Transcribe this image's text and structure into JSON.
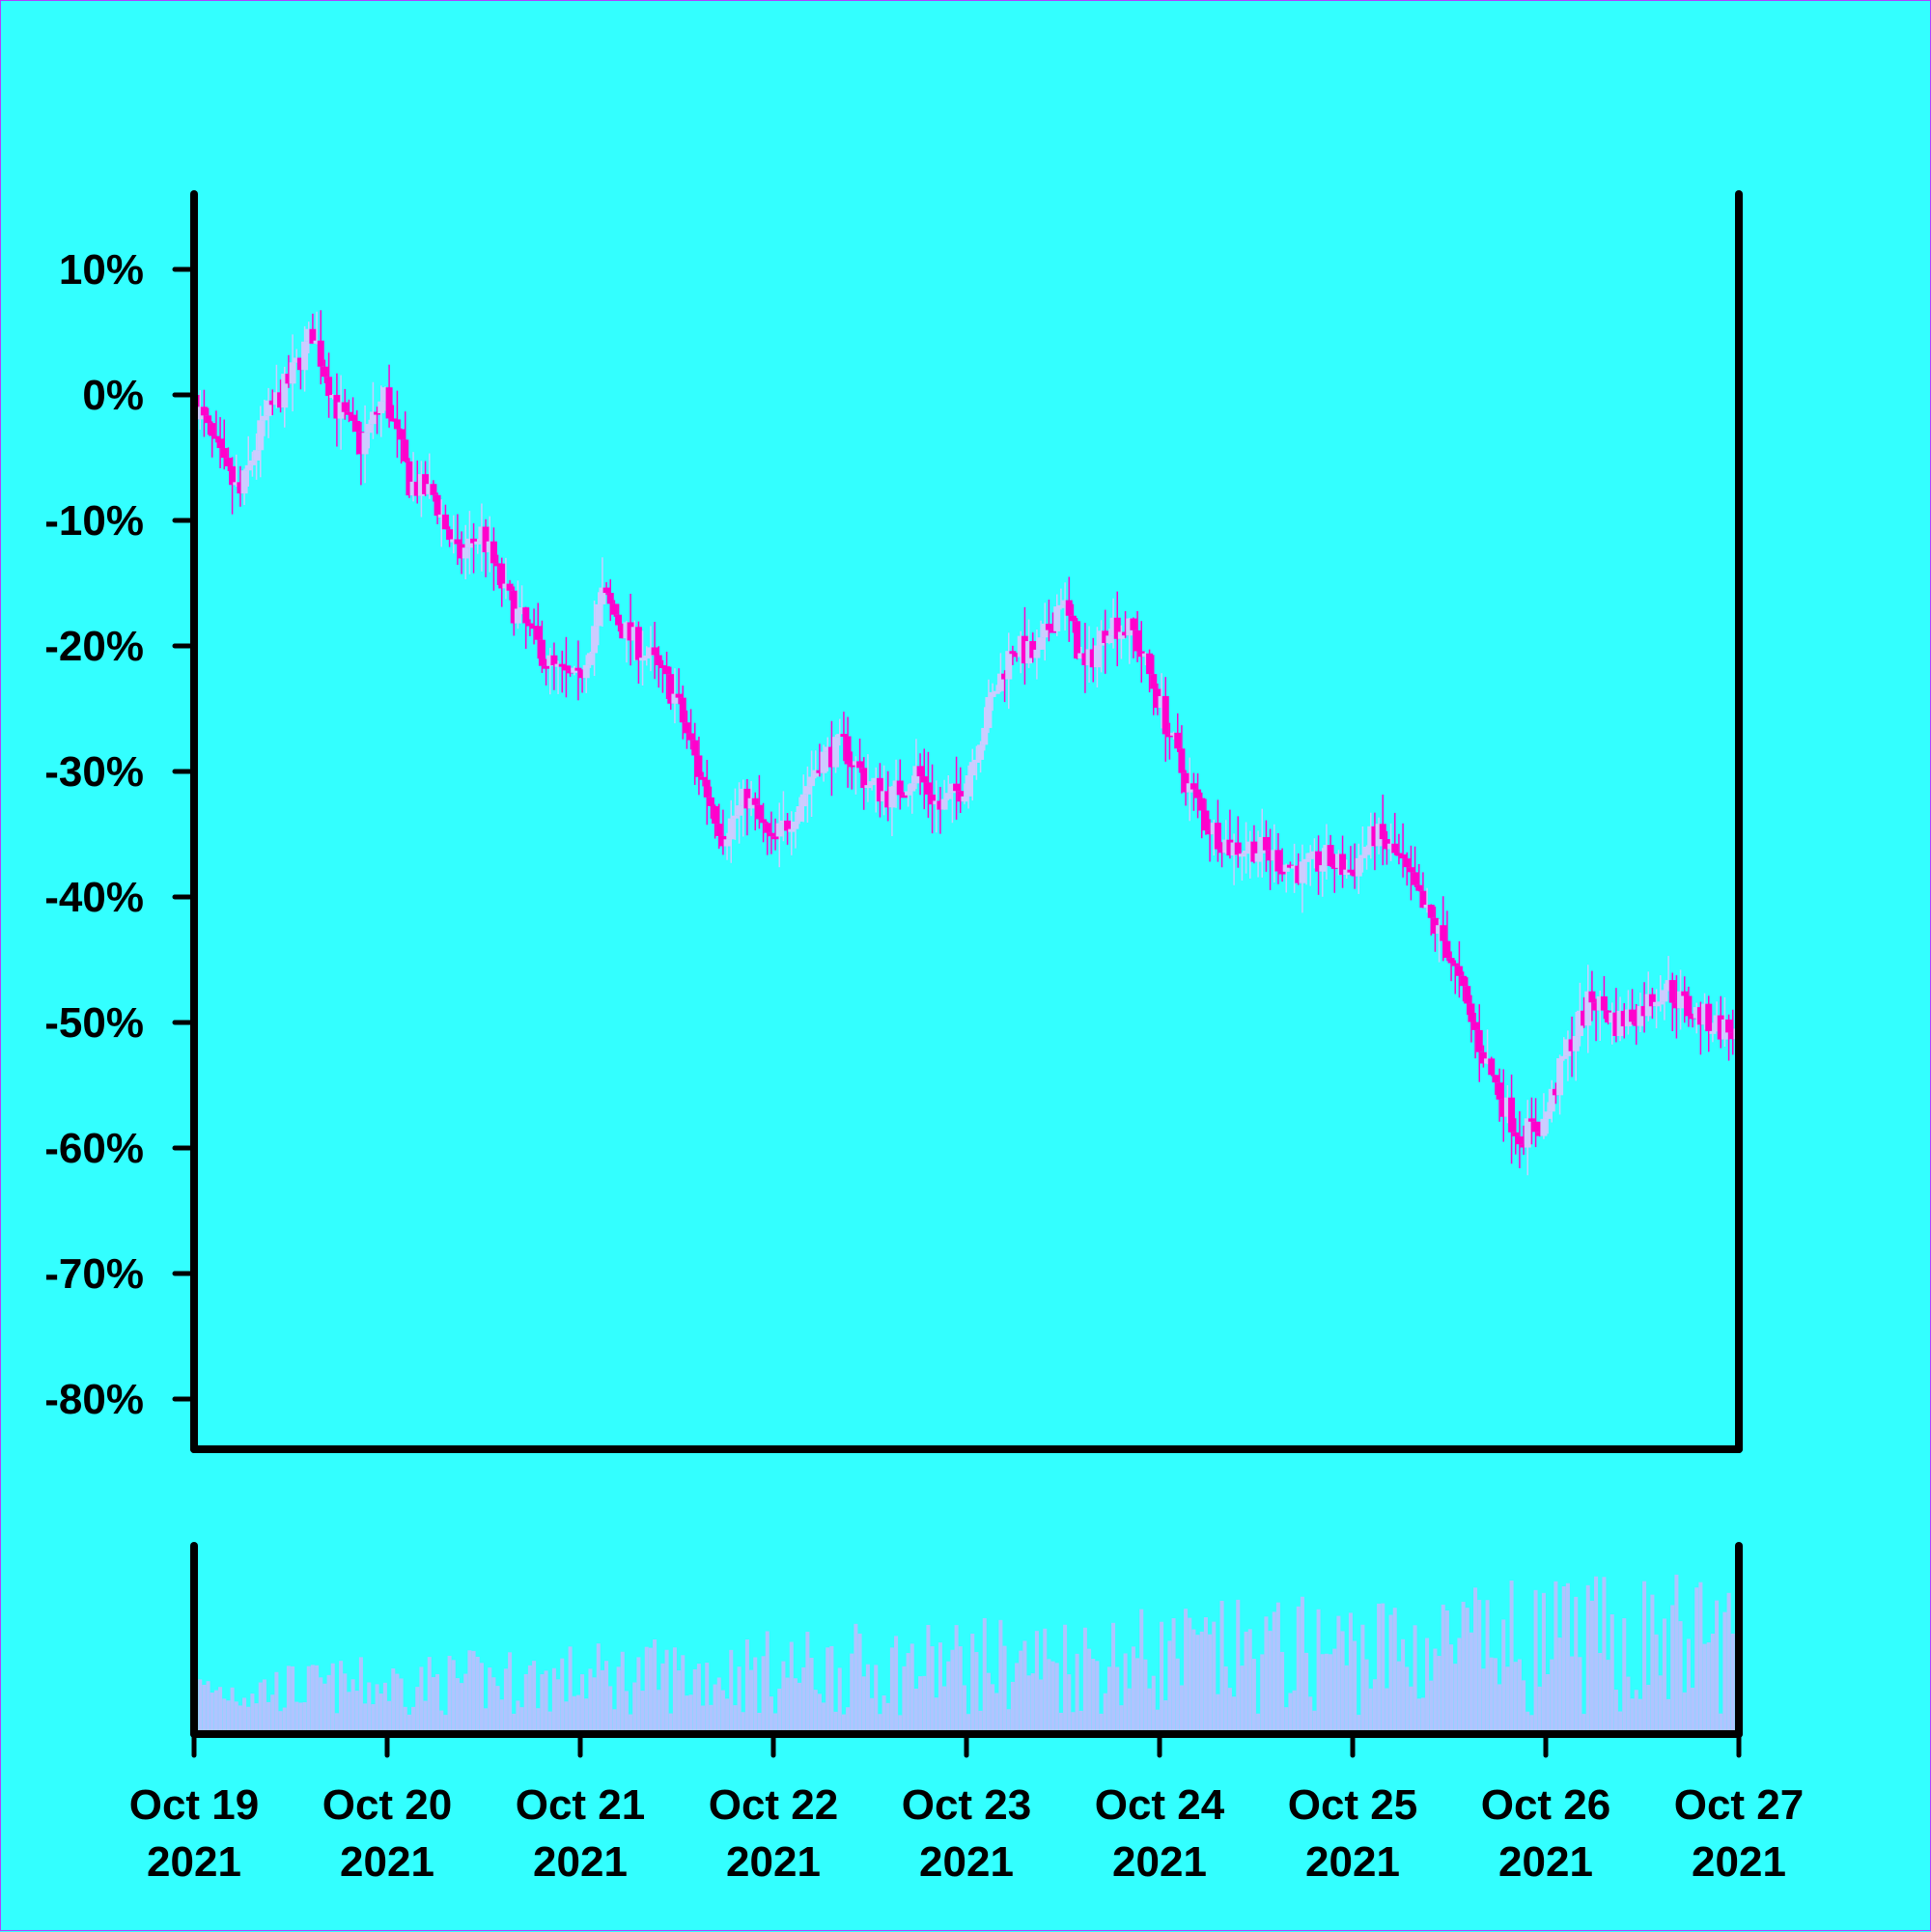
{
  "chart_data": {
    "type": "candlestick",
    "colors": {
      "background": "#33ffff",
      "up_candle": "#ccccff",
      "down_candle": "#ff00cc",
      "volume": "#b0c4ff",
      "axis": "#000000"
    },
    "y_axis": {
      "format": "percent",
      "ticks": [
        10,
        0,
        -10,
        -20,
        -30,
        -40,
        -50,
        -60,
        -70,
        -80
      ],
      "tick_labels": [
        "10%",
        "0%",
        "-10%",
        "-20%",
        "-30%",
        "-40%",
        "-50%",
        "-60%",
        "-70%",
        "-80%"
      ],
      "range": [
        -84,
        16
      ]
    },
    "x_axis": {
      "range": [
        "2021-10-19",
        "2021-10-27"
      ],
      "ticks": [
        {
          "date": "Oct 19",
          "year": "2021"
        },
        {
          "date": "Oct 20",
          "year": "2021"
        },
        {
          "date": "Oct 21",
          "year": "2021"
        },
        {
          "date": "Oct 22",
          "year": "2021"
        },
        {
          "date": "Oct 23",
          "year": "2021"
        },
        {
          "date": "Oct 24",
          "year": "2021"
        },
        {
          "date": "Oct 25",
          "year": "2021"
        },
        {
          "date": "Oct 26",
          "year": "2021"
        },
        {
          "date": "Oct 27",
          "year": "2021"
        }
      ]
    },
    "close_path": [
      [
        "2021-10-19T00:00",
        0
      ],
      [
        "2021-10-19T02:00",
        -3
      ],
      [
        "2021-10-19T04:00",
        -6
      ],
      [
        "2021-10-19T06:00",
        -8
      ],
      [
        "2021-10-19T09:00",
        -2
      ],
      [
        "2021-10-19T12:00",
        1
      ],
      [
        "2021-10-19T15:00",
        5
      ],
      [
        "2021-10-19T18:00",
        -1
      ],
      [
        "2021-10-19T21:00",
        -4
      ],
      [
        "2021-10-20T00:00",
        0
      ],
      [
        "2021-10-20T03:00",
        -7
      ],
      [
        "2021-10-20T06:00",
        -8
      ],
      [
        "2021-10-20T09:00",
        -13
      ],
      [
        "2021-10-20T12:00",
        -11
      ],
      [
        "2021-10-20T15:00",
        -16
      ],
      [
        "2021-10-20T18:00",
        -19
      ],
      [
        "2021-10-20T21:00",
        -22
      ],
      [
        "2021-10-21T00:00",
        -23
      ],
      [
        "2021-10-21T03:00",
        -16
      ],
      [
        "2021-10-21T06:00",
        -19
      ],
      [
        "2021-10-21T09:00",
        -21
      ],
      [
        "2021-10-21T12:00",
        -24
      ],
      [
        "2021-10-21T15:00",
        -30
      ],
      [
        "2021-10-21T18:00",
        -35
      ],
      [
        "2021-10-21T21:00",
        -32
      ],
      [
        "2021-10-22T00:00",
        -36
      ],
      [
        "2021-10-22T03:00",
        -33
      ],
      [
        "2021-10-22T06:00",
        -29
      ],
      [
        "2021-10-22T09:00",
        -28
      ],
      [
        "2021-10-22T12:00",
        -31
      ],
      [
        "2021-10-22T15:00",
        -32
      ],
      [
        "2021-10-22T18:00",
        -30
      ],
      [
        "2021-10-22T21:00",
        -33
      ],
      [
        "2021-10-23T00:00",
        -31
      ],
      [
        "2021-10-23T03:00",
        -25
      ],
      [
        "2021-10-23T06:00",
        -20
      ],
      [
        "2021-10-23T09:00",
        -21
      ],
      [
        "2021-10-23T12:00",
        -16
      ],
      [
        "2021-10-23T15:00",
        -22
      ],
      [
        "2021-10-23T18:00",
        -18
      ],
      [
        "2021-10-23T21:00",
        -19
      ],
      [
        "2021-10-24T00:00",
        -24
      ],
      [
        "2021-10-24T03:00",
        -30
      ],
      [
        "2021-10-24T06:00",
        -34
      ],
      [
        "2021-10-24T09:00",
        -36
      ],
      [
        "2021-10-24T12:00",
        -36
      ],
      [
        "2021-10-24T15:00",
        -37
      ],
      [
        "2021-10-24T18:00",
        -38
      ],
      [
        "2021-10-24T21:00",
        -37
      ],
      [
        "2021-10-25T00:00",
        -38
      ],
      [
        "2021-10-25T03:00",
        -35
      ],
      [
        "2021-10-25T06:00",
        -37
      ],
      [
        "2021-10-25T09:00",
        -41
      ],
      [
        "2021-10-25T12:00",
        -44
      ],
      [
        "2021-10-25T15:00",
        -50
      ],
      [
        "2021-10-25T18:00",
        -55
      ],
      [
        "2021-10-25T21:00",
        -59
      ],
      [
        "2021-10-26T00:00",
        -58
      ],
      [
        "2021-10-26T03:00",
        -52
      ],
      [
        "2021-10-26T06:00",
        -48
      ],
      [
        "2021-10-26T09:00",
        -50
      ],
      [
        "2021-10-26T12:00",
        -49
      ],
      [
        "2021-10-26T15:00",
        -47
      ],
      [
        "2021-10-26T18:00",
        -49
      ],
      [
        "2021-10-26T21:00",
        -50
      ],
      [
        "2021-10-27T00:00",
        -51
      ]
    ],
    "volume_panel": {
      "range": [
        0,
        100
      ]
    }
  }
}
